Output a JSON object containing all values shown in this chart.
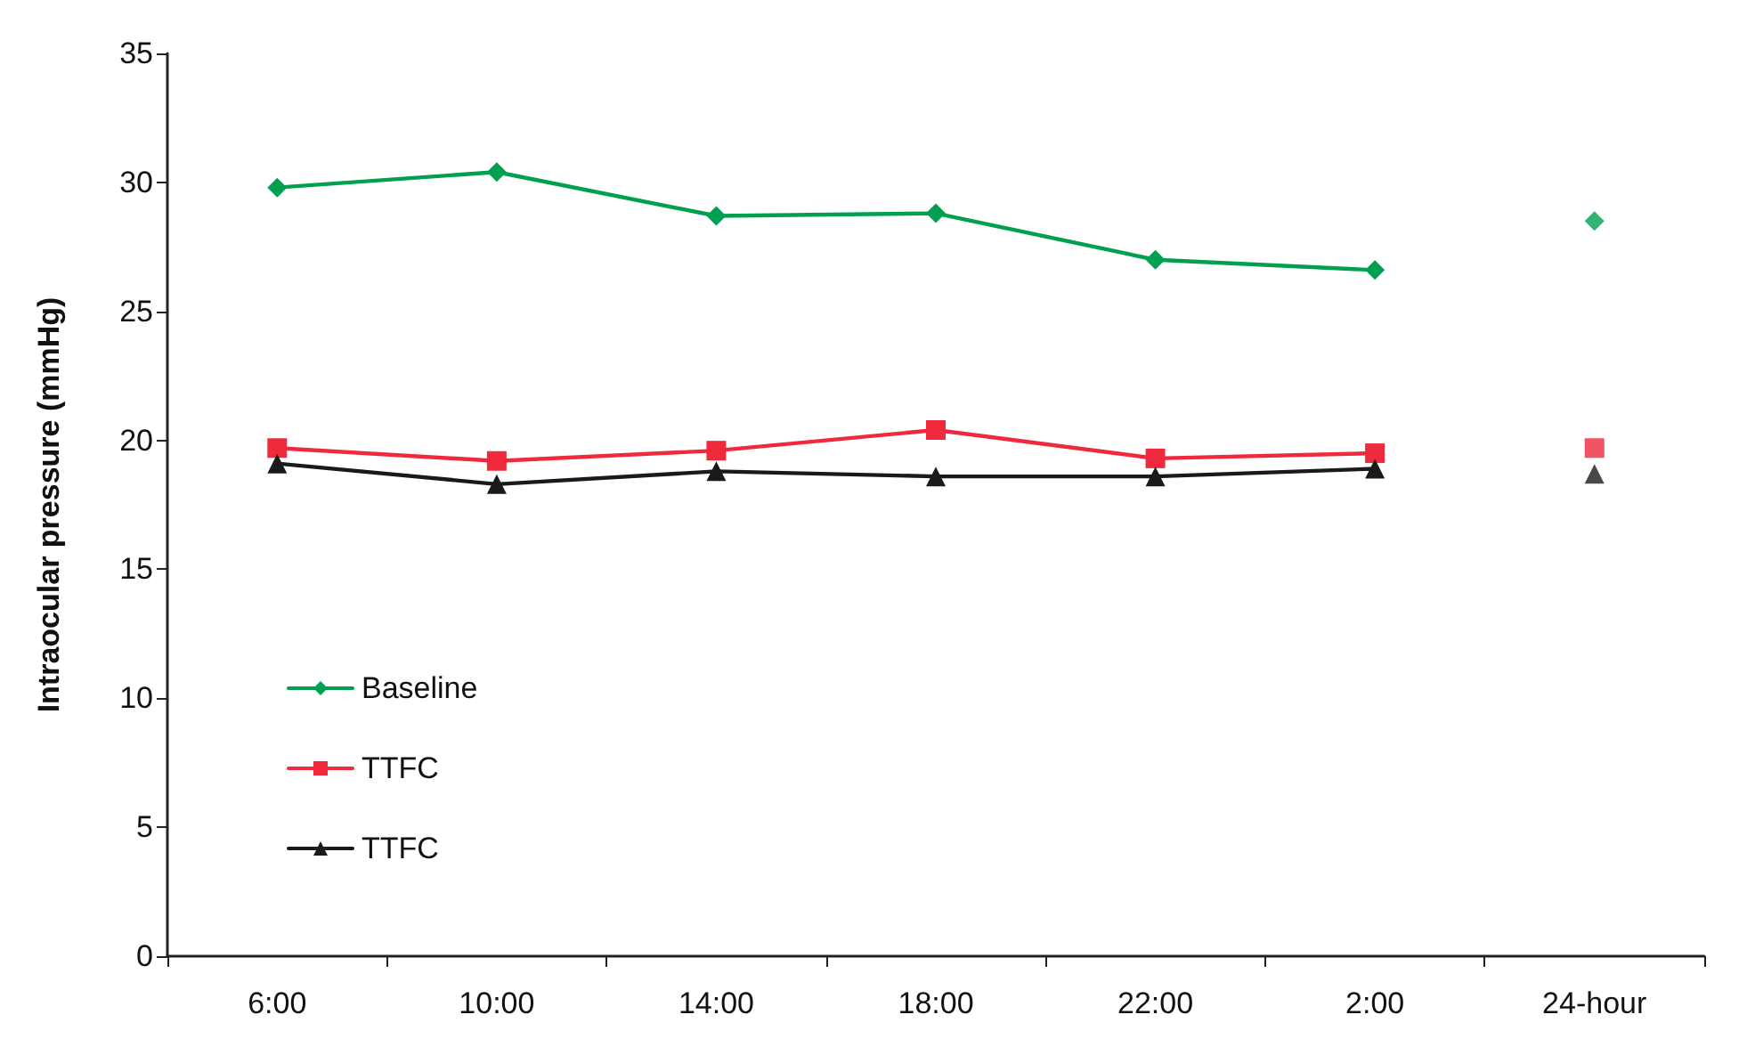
{
  "chart_data": {
    "type": "line",
    "ylabel": "Intraocular pressure (mmHg)",
    "categories": [
      "6:00",
      "10:00",
      "14:00",
      "18:00",
      "22:00",
      "2:00",
      "24-hour"
    ],
    "series": [
      {
        "name": "Baseline",
        "color": "#00a050",
        "marker": "diamond",
        "values": [
          29.8,
          30.4,
          28.7,
          28.8,
          27.0,
          26.6,
          null
        ]
      },
      {
        "name": "TTFC",
        "color": "#ee2a3c",
        "marker": "square",
        "values": [
          19.7,
          19.2,
          19.6,
          20.4,
          19.3,
          19.5,
          null
        ]
      },
      {
        "name": "TTFC",
        "color": "#1a1a1a",
        "marker": "triangle",
        "values": [
          19.1,
          18.3,
          18.8,
          18.6,
          18.6,
          18.9,
          null
        ]
      },
      {
        "type": "scatter",
        "color": "#00a050",
        "marker": "diamond",
        "x": [
          "24-hour"
        ],
        "values": [
          28.5
        ]
      },
      {
        "type": "scatter",
        "color": "#ee2a3c",
        "marker": "square",
        "x": [
          "24-hour"
        ],
        "values": [
          19.7
        ]
      },
      {
        "type": "scatter",
        "color": "#1a1a1a",
        "marker": "triangle",
        "x": [
          "24-hour"
        ],
        "values": [
          18.7
        ]
      }
    ],
    "ylim": [
      0,
      35
    ],
    "yticks": [
      0,
      5,
      10,
      15,
      20,
      25,
      30,
      35
    ],
    "grid": false,
    "legend": "left",
    "line_style": "solid"
  }
}
